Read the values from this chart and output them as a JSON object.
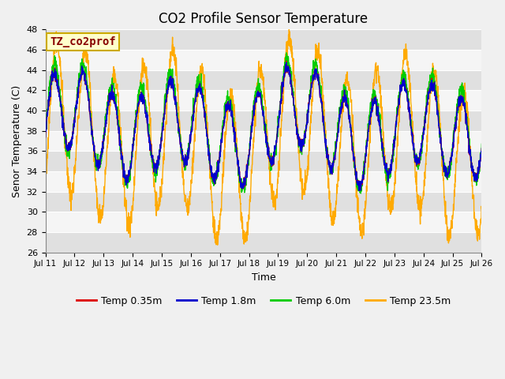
{
  "title": "CO2 Profile Sensor Temperature",
  "ylabel": "Senor Temperature (C)",
  "xlabel": "Time",
  "legend_label": "TZ_co2prof",
  "ylim": [
    26,
    48
  ],
  "yticks": [
    26,
    28,
    30,
    32,
    34,
    36,
    38,
    40,
    42,
    44,
    46,
    48
  ],
  "series_labels": [
    "Temp 0.35m",
    "Temp 1.8m",
    "Temp 6.0m",
    "Temp 23.5m"
  ],
  "series_colors": [
    "#dd0000",
    "#0000cc",
    "#00cc00",
    "#ffaa00"
  ],
  "fig_facecolor": "#f0f0f0",
  "plot_bg_color": "#f5f5f5",
  "xtick_labels": [
    "Jul 11",
    "Jul 12",
    "Jul 13",
    "Jul 14",
    "Jul 15",
    "Jul 16",
    "Jul 17",
    "Jul 18",
    "Jul 19",
    "Jul 20",
    "Jul 21",
    "Jul 22",
    "Jul 23",
    "Jul 24",
    "Jul 25",
    "Jul 26"
  ],
  "title_fontsize": 12,
  "axis_fontsize": 9,
  "legend_fontsize": 9,
  "legend_box_facecolor": "#ffffcc",
  "legend_box_edgecolor": "#ccaa00",
  "legend_text_color": "#880000"
}
